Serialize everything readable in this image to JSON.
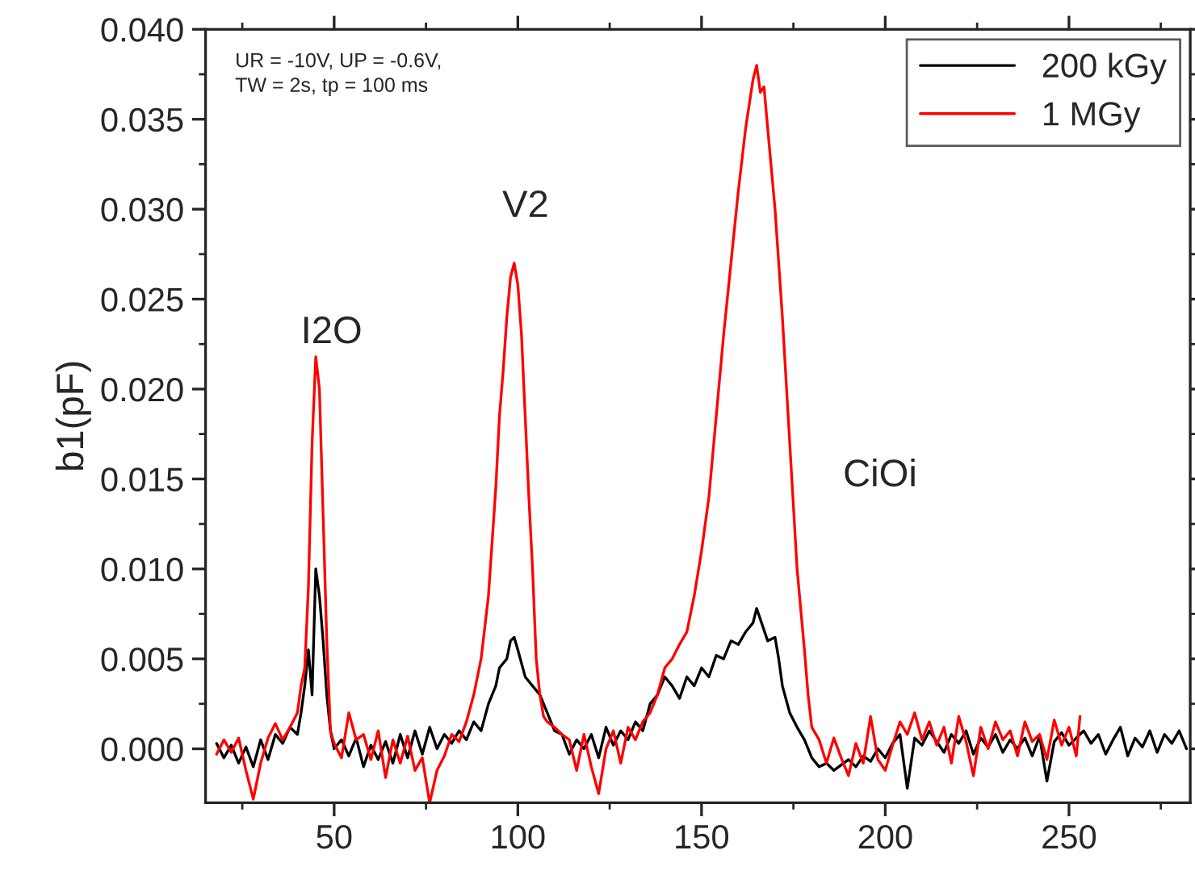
{
  "chart_data": {
    "type": "line",
    "ylabel": "b1(pF)",
    "xlim": [
      15,
      283
    ],
    "ylim": [
      -0.003,
      0.04
    ],
    "xticks": [
      {
        "value": 25,
        "label": null
      },
      50,
      {
        "value": 75,
        "label": null
      },
      100,
      {
        "value": 125,
        "label": null
      },
      150,
      {
        "value": 175,
        "label": null
      },
      200,
      {
        "value": 225,
        "label": null
      },
      250,
      {
        "value": 275,
        "label": null
      }
    ],
    "yticks": [
      {
        "value": 0,
        "label": "0.000"
      },
      {
        "value": 0.0025,
        "label": null
      },
      {
        "value": 0.005,
        "label": "0.005"
      },
      {
        "value": 0.0075,
        "label": null
      },
      {
        "value": 0.01,
        "label": "0.010"
      },
      {
        "value": 0.0125,
        "label": null
      },
      {
        "value": 0.015,
        "label": "0.015"
      },
      {
        "value": 0.0175,
        "label": null
      },
      {
        "value": 0.02,
        "label": "0.020"
      },
      {
        "value": 0.0225,
        "label": null
      },
      {
        "value": 0.025,
        "label": "0.025"
      },
      {
        "value": 0.0275,
        "label": null
      },
      {
        "value": 0.03,
        "label": "0.030"
      },
      {
        "value": 0.0325,
        "label": null
      },
      {
        "value": 0.035,
        "label": "0.035"
      },
      {
        "value": 0.0375,
        "label": null
      },
      {
        "value": 0.04,
        "label": "0.040"
      }
    ],
    "grid": false,
    "legend": "top right",
    "marker": "none",
    "line_style": "solid",
    "annotations": [
      "UR = -10V, UP = -0.6V,\nTW = 2s, tp = 100 ms",
      "I2O",
      "V2",
      "CiOi"
    ],
    "series": [
      {
        "name": "200 kGy",
        "color": "#000000",
        "x": [
          18,
          20,
          22,
          24,
          26,
          28,
          30,
          32,
          34,
          36,
          38,
          40,
          41,
          42,
          43,
          44,
          45,
          46,
          47,
          48,
          49,
          50,
          52,
          54,
          56,
          58,
          60,
          62,
          64,
          66,
          68,
          70,
          72,
          74,
          76,
          78,
          80,
          82,
          84,
          86,
          88,
          90,
          92,
          94,
          95,
          97,
          98,
          99,
          100,
          102,
          104,
          106,
          108,
          110,
          112,
          114,
          116,
          118,
          120,
          122,
          124,
          126,
          128,
          130,
          132,
          134,
          136,
          138,
          140,
          142,
          144,
          146,
          148,
          150,
          152,
          154,
          156,
          158,
          160,
          162,
          164,
          165,
          166,
          168,
          170,
          171,
          172,
          174,
          176,
          178,
          180,
          182,
          184,
          186,
          188,
          190,
          192,
          194,
          196,
          198,
          200,
          202,
          204,
          206,
          208,
          210,
          212,
          214,
          216,
          218,
          220,
          222,
          224,
          226,
          228,
          230,
          232,
          234,
          236,
          238,
          240,
          242,
          244,
          246,
          248,
          250,
          252,
          254,
          256,
          258,
          260,
          262,
          264,
          266,
          268,
          270,
          272,
          274,
          276,
          278,
          280,
          282
        ],
        "values": [
          0.0003,
          -0.0005,
          0.0002,
          -0.0008,
          0.0001,
          -0.001,
          0.0005,
          -0.0006,
          0.0008,
          0.0003,
          0.0012,
          0.0008,
          0.002,
          0.0035,
          0.0055,
          0.003,
          0.01,
          0.0085,
          0.006,
          0.003,
          0.001,
          0.0,
          0.0005,
          -0.0004,
          0.0006,
          -0.001,
          0.0002,
          -0.0006,
          0.0004,
          -0.0008,
          0.0008,
          -0.0005,
          0.001,
          -0.0003,
          0.0012,
          0.0,
          0.0008,
          0.0003,
          0.001,
          0.0005,
          0.0015,
          0.001,
          0.0025,
          0.0035,
          0.0045,
          0.005,
          0.006,
          0.0062,
          0.0055,
          0.004,
          0.0035,
          0.003,
          0.002,
          0.001,
          0.0008,
          -0.0003,
          0.0005,
          0.0,
          0.0008,
          -0.0005,
          0.0012,
          0.0002,
          0.001,
          0.0005,
          0.0015,
          0.001,
          0.0025,
          0.003,
          0.004,
          0.0035,
          0.0028,
          0.004,
          0.0035,
          0.0045,
          0.004,
          0.0052,
          0.005,
          0.006,
          0.0058,
          0.0065,
          0.007,
          0.0078,
          0.0072,
          0.006,
          0.0062,
          0.005,
          0.0035,
          0.002,
          0.0012,
          0.0005,
          -0.0005,
          -0.001,
          -0.0008,
          -0.0012,
          -0.0009,
          -0.0006,
          -0.001,
          -0.0004,
          -0.0007,
          0.0,
          -0.0005,
          0.0003,
          0.0008,
          -0.0022,
          0.0006,
          0.0002,
          0.001,
          0.0004,
          -0.0002,
          0.0008,
          0.0003,
          0.001,
          -0.0003,
          0.0006,
          0.0001,
          0.0008,
          -0.0002,
          0.0005,
          0.0,
          0.0006,
          -0.0004,
          0.0007,
          -0.0018,
          0.0004,
          0.0009,
          0.0002,
          0.0006,
          0.001,
          0.0003,
          0.0008,
          -0.0003,
          0.0005,
          0.0012,
          -0.0004,
          0.0006,
          0.0001,
          0.001,
          -0.0002,
          0.0008,
          0.0003,
          0.001,
          0.0
        ]
      },
      {
        "name": "1 MGy",
        "color": "#ff0000",
        "x": [
          18,
          20,
          22,
          24,
          26,
          28,
          30,
          32,
          34,
          36,
          38,
          40,
          41,
          42,
          43,
          44,
          45,
          46,
          47,
          48,
          49,
          50,
          52,
          54,
          56,
          58,
          60,
          62,
          64,
          66,
          68,
          70,
          72,
          74,
          76,
          78,
          80,
          82,
          84,
          86,
          88,
          90,
          92,
          93,
          94,
          95,
          96,
          97,
          98,
          99,
          100,
          101,
          102,
          103,
          104,
          105,
          106,
          107,
          108,
          110,
          112,
          114,
          116,
          118,
          120,
          122,
          124,
          126,
          128,
          130,
          132,
          134,
          136,
          138,
          140,
          142,
          144,
          146,
          148,
          150,
          152,
          154,
          156,
          158,
          160,
          162,
          164,
          165,
          166,
          167,
          168,
          170,
          172,
          174,
          176,
          178,
          179,
          180,
          182,
          184,
          186,
          188,
          190,
          192,
          194,
          196,
          198,
          200,
          202,
          204,
          206,
          208,
          210,
          212,
          214,
          216,
          218,
          220,
          222,
          224,
          226,
          228,
          230,
          232,
          234,
          236,
          238,
          240,
          242,
          244,
          246,
          248,
          250,
          252,
          253
        ],
        "values": [
          -0.0003,
          0.0005,
          -0.0002,
          0.0006,
          -0.0012,
          -0.0028,
          -0.0008,
          0.0006,
          0.0014,
          0.0005,
          0.0012,
          0.002,
          0.0035,
          0.0045,
          0.009,
          0.017,
          0.0218,
          0.02,
          0.013,
          0.006,
          0.001,
          0.0003,
          -0.0005,
          0.002,
          0.0005,
          0.0008,
          -0.0006,
          0.001,
          -0.0016,
          0.0005,
          -0.0008,
          0.0007,
          -0.0012,
          -0.0005,
          -0.003,
          -0.0012,
          -0.0004,
          0.0008,
          0.0004,
          0.0015,
          0.003,
          0.005,
          0.0085,
          0.0115,
          0.0145,
          0.0185,
          0.021,
          0.024,
          0.0262,
          0.027,
          0.0258,
          0.023,
          0.0185,
          0.014,
          0.01,
          0.005,
          0.003,
          0.0018,
          0.0015,
          0.0012,
          0.0008,
          0.0005,
          -0.0012,
          0.0008,
          -0.001,
          -0.0025,
          0.0,
          0.001,
          -0.0008,
          0.0012,
          0.0005,
          0.0015,
          0.002,
          0.003,
          0.0045,
          0.005,
          0.0058,
          0.0065,
          0.0085,
          0.011,
          0.014,
          0.0185,
          0.023,
          0.027,
          0.031,
          0.0345,
          0.0372,
          0.038,
          0.0365,
          0.0368,
          0.0345,
          0.03,
          0.024,
          0.017,
          0.01,
          0.0055,
          0.003,
          0.0012,
          0.0005,
          -0.0008,
          0.0006,
          -0.0005,
          -0.0015,
          0.0003,
          -0.0008,
          0.0018,
          -0.0006,
          -0.0012,
          0.0002,
          0.0015,
          0.0008,
          0.002,
          0.0005,
          0.0015,
          0.0002,
          0.0012,
          -0.0008,
          0.0018,
          0.0004,
          -0.0015,
          0.0012,
          0.0,
          0.0015,
          0.0005,
          0.001,
          -0.0004,
          0.0015,
          0.0004,
          0.0008,
          -0.0006,
          0.0016,
          0.0002,
          0.0012,
          -0.0004,
          0.0018
        ]
      }
    ]
  }
}
